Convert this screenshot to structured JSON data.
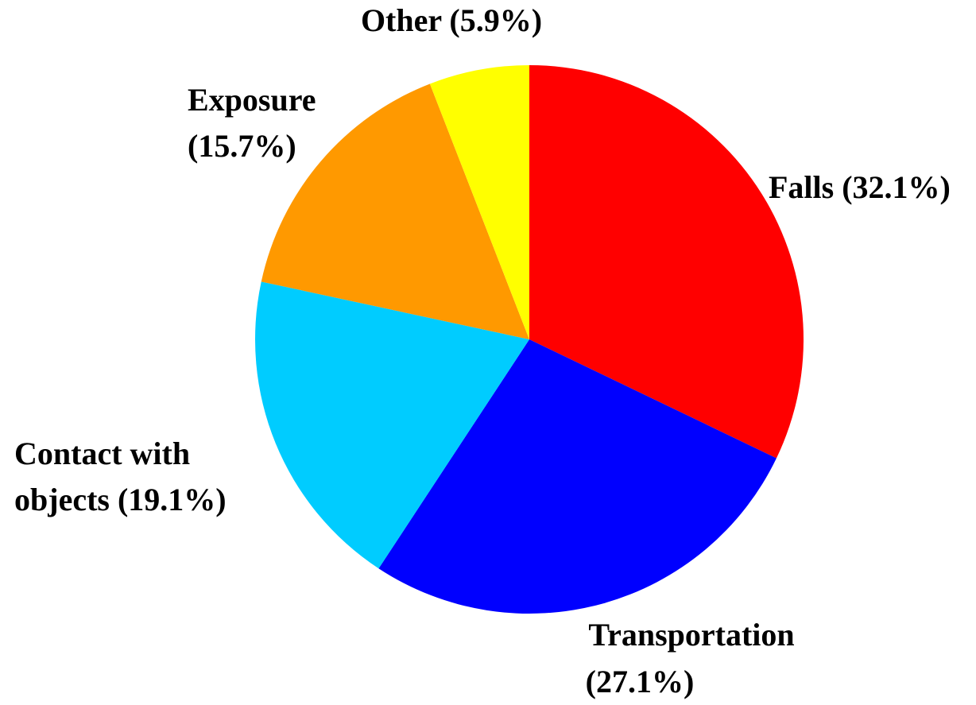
{
  "chart_data": {
    "type": "pie",
    "labels": [
      [
        "Falls (32.1%)"
      ],
      [
        "Transportation",
        "(27.1%)"
      ],
      [
        "Contact with",
        "objects (19.1%)"
      ],
      [
        "Exposure",
        "(15.7%)"
      ],
      [
        "Other (5.9%)"
      ]
    ],
    "values": [
      32.1,
      27.1,
      19.1,
      15.7,
      5.9
    ],
    "colors": [
      "#ff0000",
      "#0000ff",
      "#00ccff",
      "#ff9900",
      "#ffff00"
    ]
  }
}
